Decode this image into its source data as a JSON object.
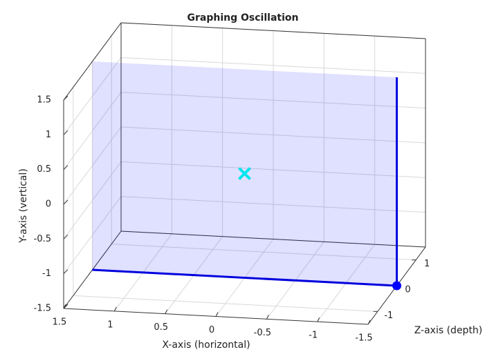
{
  "chart_data": {
    "type": "plot3d",
    "title": "Graphing Oscillation",
    "xlabel": "X-axis (horizontal)",
    "ylabel": "Y-axis (vertical)",
    "zlabel": "Z-axis (depth)",
    "xlim": [
      -1.5,
      1.5
    ],
    "ylim": [
      -1.5,
      1.5
    ],
    "zlim": [
      -1.5,
      1.5
    ],
    "xdir": "reverse",
    "xticks": [
      -1.5,
      -1,
      -0.5,
      0,
      0.5,
      1,
      1.5
    ],
    "yticks": [
      -1.5,
      -1,
      -0.5,
      0,
      0.5,
      1,
      1.5
    ],
    "zticks": [
      -1,
      0,
      1
    ],
    "grid": true,
    "plane": {
      "x": [
        1.5,
        -1.5
      ],
      "y": [
        -1.5,
        1.5
      ],
      "z": 0,
      "color": "#0000ff",
      "opacity": 0.12
    },
    "lines": [
      {
        "x": [
          1.5,
          -1.5,
          -1.5
        ],
        "y": [
          -1.5,
          -1.5,
          1.5
        ],
        "z": [
          0,
          0,
          0
        ],
        "color": "#0000dd"
      }
    ],
    "markers": [
      {
        "x": [
          -1.5
        ],
        "y": [
          -1.5
        ],
        "z": [
          0
        ],
        "marker": "o",
        "color": "#0000ff"
      },
      {
        "x": [
          0
        ],
        "y": [
          0
        ],
        "z": [
          0
        ],
        "marker": "x",
        "color": "#00e5ee"
      }
    ]
  }
}
